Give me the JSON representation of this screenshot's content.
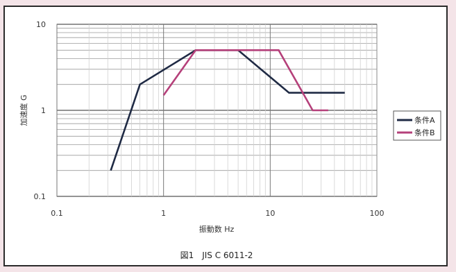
{
  "chart_data": {
    "type": "line",
    "xscale": "log",
    "yscale": "log",
    "xlim": [
      0.1,
      100
    ],
    "ylim": [
      0.1,
      10
    ],
    "x_ticks": [
      "0.1",
      "1",
      "10",
      "100"
    ],
    "y_ticks": [
      "0.1",
      "1",
      "10"
    ],
    "xlabel": "振動数 Hz",
    "ylabel": "加速度 G",
    "caption": "図1　JIS C 6011-2",
    "grid": true,
    "legend_position": "right",
    "series": [
      {
        "name": "条件A",
        "color": "#1f2a44",
        "points": [
          [
            0.32,
            0.2
          ],
          [
            0.6,
            2
          ],
          [
            2,
            5
          ],
          [
            5,
            5
          ],
          [
            15,
            1.6
          ],
          [
            50,
            1.6
          ]
        ]
      },
      {
        "name": "条件B",
        "color": "#b5407a",
        "points": [
          [
            1,
            1.5
          ],
          [
            2,
            5
          ],
          [
            12,
            5
          ],
          [
            25,
            1
          ],
          [
            35,
            1
          ]
        ]
      }
    ]
  }
}
